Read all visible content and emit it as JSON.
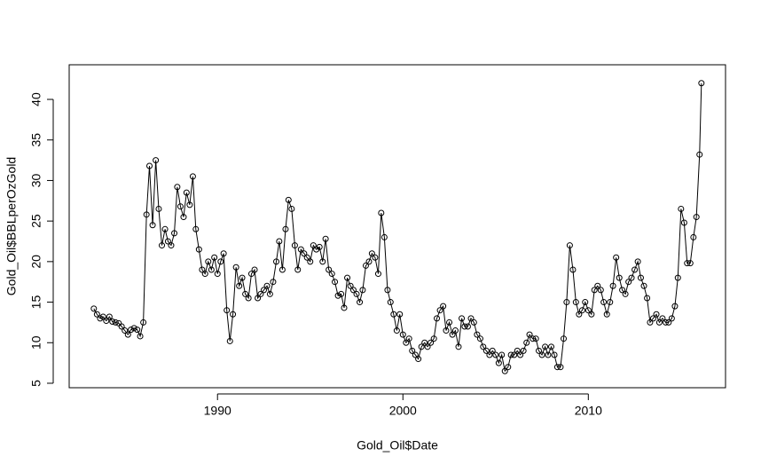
{
  "chart_data": {
    "type": "line-points",
    "xlabel": "Gold_Oil$Date",
    "ylabel": "Gold_Oil$BBLperOzGold",
    "x": [
      1983.33,
      1983.5,
      1983.67,
      1983.83,
      1984,
      1984.17,
      1984.33,
      1984.5,
      1984.67,
      1984.83,
      1985,
      1985.17,
      1985.33,
      1985.5,
      1985.67,
      1985.83,
      1986,
      1986.17,
      1986.33,
      1986.5,
      1986.67,
      1986.83,
      1987,
      1987.17,
      1987.33,
      1987.5,
      1987.67,
      1987.83,
      1988,
      1988.17,
      1988.33,
      1988.5,
      1988.67,
      1988.83,
      1989,
      1989.17,
      1989.33,
      1989.5,
      1989.67,
      1989.83,
      1990,
      1990.17,
      1990.33,
      1990.5,
      1990.67,
      1990.83,
      1991,
      1991.17,
      1991.33,
      1991.5,
      1991.67,
      1991.83,
      1992,
      1992.17,
      1992.33,
      1992.5,
      1992.67,
      1992.83,
      1993,
      1993.17,
      1993.33,
      1993.5,
      1993.67,
      1993.83,
      1994,
      1994.17,
      1994.33,
      1994.5,
      1994.67,
      1994.83,
      1995,
      1995.17,
      1995.33,
      1995.5,
      1995.67,
      1995.83,
      1996,
      1996.17,
      1996.33,
      1996.5,
      1996.67,
      1996.83,
      1997,
      1997.17,
      1997.33,
      1997.5,
      1997.67,
      1997.83,
      1998,
      1998.17,
      1998.33,
      1998.5,
      1998.67,
      1998.83,
      1999,
      1999.17,
      1999.33,
      1999.5,
      1999.67,
      1999.83,
      2000,
      2000.17,
      2000.33,
      2000.5,
      2000.67,
      2000.83,
      2001,
      2001.17,
      2001.33,
      2001.5,
      2001.67,
      2001.83,
      2002,
      2002.17,
      2002.33,
      2002.5,
      2002.67,
      2002.83,
      2003,
      2003.17,
      2003.33,
      2003.5,
      2003.67,
      2003.83,
      2004,
      2004.17,
      2004.33,
      2004.5,
      2004.67,
      2004.83,
      2005,
      2005.17,
      2005.33,
      2005.5,
      2005.67,
      2005.83,
      2006,
      2006.17,
      2006.33,
      2006.5,
      2006.67,
      2006.83,
      2007,
      2007.17,
      2007.33,
      2007.5,
      2007.67,
      2007.83,
      2008,
      2008.17,
      2008.33,
      2008.5,
      2008.67,
      2008.83,
      2009,
      2009.17,
      2009.33,
      2009.5,
      2009.67,
      2009.83,
      2010,
      2010.17,
      2010.33,
      2010.5,
      2010.67,
      2010.83,
      2011,
      2011.17,
      2011.33,
      2011.5,
      2011.67,
      2011.83,
      2012,
      2012.17,
      2012.33,
      2012.5,
      2012.67,
      2012.83,
      2013,
      2013.17,
      2013.33,
      2013.5,
      2013.67,
      2013.83,
      2014,
      2014.17,
      2014.33,
      2014.5,
      2014.67,
      2014.83,
      2015,
      2015.17,
      2015.33,
      2015.5,
      2015.67,
      2015.83,
      2016,
      2016.1
    ],
    "values": [
      14.2,
      13.5,
      13.0,
      13.2,
      12.7,
      13.2,
      12.6,
      12.5,
      12.4,
      12.0,
      11.5,
      11.0,
      11.6,
      11.8,
      11.6,
      10.8,
      12.5,
      25.8,
      31.8,
      24.5,
      32.5,
      26.5,
      22.0,
      24.0,
      22.5,
      22.0,
      23.5,
      29.2,
      26.8,
      25.5,
      28.5,
      27.0,
      30.5,
      24.0,
      21.5,
      19.0,
      18.5,
      20.0,
      19.0,
      20.5,
      18.5,
      20.0,
      21.0,
      14.0,
      10.2,
      13.5,
      19.3,
      17.0,
      18.0,
      16.0,
      15.5,
      18.5,
      19.0,
      15.5,
      16.0,
      16.5,
      17.0,
      16.0,
      17.5,
      20.0,
      22.5,
      19.0,
      24.0,
      27.6,
      26.5,
      22.0,
      19.0,
      21.5,
      21.0,
      20.5,
      20.0,
      22.0,
      21.5,
      21.8,
      20.0,
      22.8,
      19.0,
      18.5,
      17.5,
      15.8,
      16.0,
      14.3,
      18.0,
      17.0,
      16.5,
      16.0,
      15.0,
      16.5,
      19.5,
      20.0,
      21.0,
      20.5,
      18.5,
      26.0,
      23.0,
      16.5,
      15.0,
      13.5,
      11.5,
      13.5,
      11.0,
      10.0,
      10.5,
      9.0,
      8.5,
      8.0,
      9.5,
      10.0,
      9.5,
      10.0,
      10.5,
      13.0,
      14.0,
      14.5,
      11.5,
      12.5,
      11.0,
      11.5,
      9.5,
      13.0,
      12.0,
      12.0,
      13.0,
      12.5,
      11.0,
      10.5,
      9.5,
      9.0,
      8.5,
      9.0,
      8.5,
      7.5,
      8.5,
      6.5,
      7.0,
      8.5,
      8.5,
      9.0,
      8.5,
      9.0,
      10.0,
      11.0,
      10.5,
      10.5,
      9.0,
      8.5,
      9.5,
      8.5,
      9.5,
      8.5,
      7.0,
      7.0,
      10.5,
      15.0,
      22.0,
      19.0,
      15.0,
      13.5,
      14.0,
      15.0,
      14.0,
      13.5,
      16.5,
      17.0,
      16.5,
      15.0,
      13.5,
      15.0,
      17.0,
      20.5,
      18.0,
      16.5,
      16.0,
      17.5,
      18.0,
      19.0,
      20.0,
      18.0,
      17.0,
      15.5,
      12.5,
      13.0,
      13.5,
      12.5,
      13.0,
      12.5,
      12.5,
      13.0,
      14.5,
      18.0,
      26.5,
      24.8,
      19.8,
      19.8,
      23.0,
      25.5,
      33.2,
      42.0
    ],
    "color": "#000000",
    "xlim": [
      1982.0,
      2017.4
    ],
    "ylim": [
      4.45,
      44.27
    ],
    "xticks": [
      1990,
      2000,
      2010
    ],
    "yticks": [
      5,
      10,
      15,
      20,
      25,
      30,
      35,
      40
    ]
  }
}
